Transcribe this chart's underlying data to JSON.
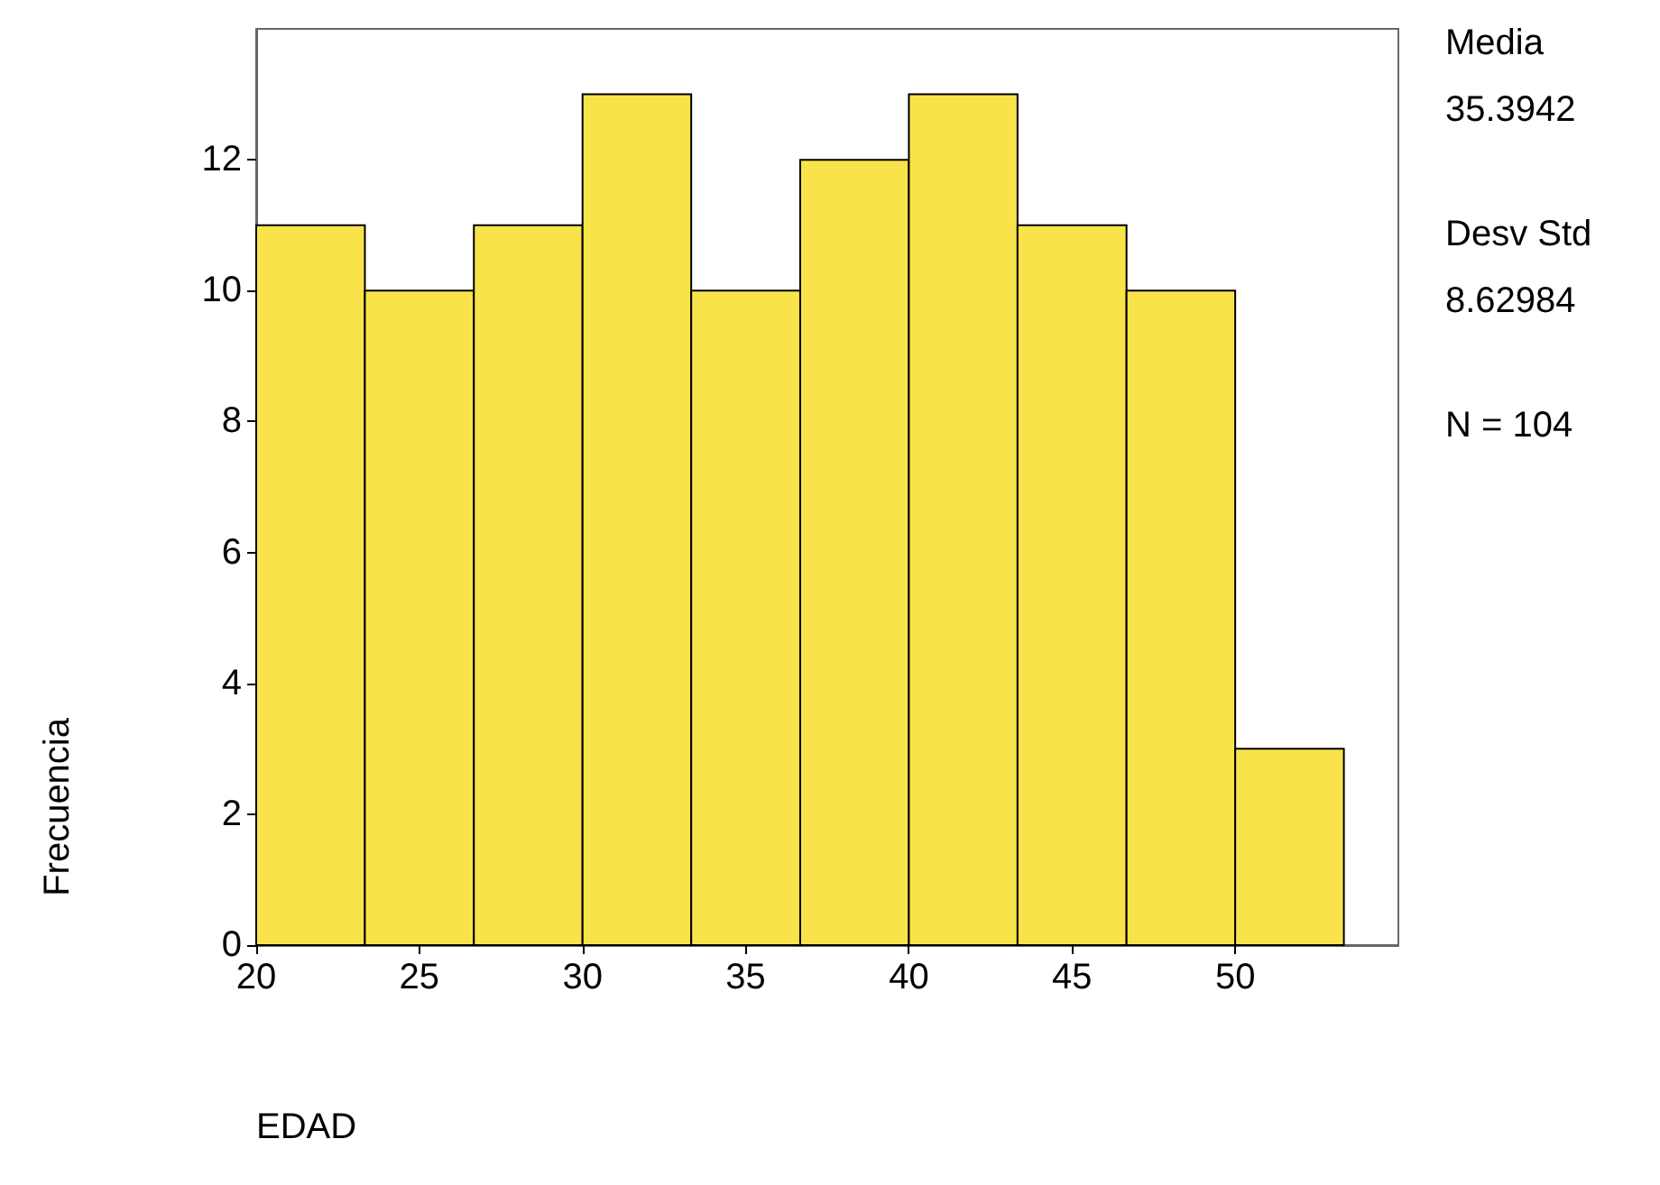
{
  "chart_data": {
    "type": "histogram",
    "xlabel": "EDAD",
    "ylabel": "Frecuencia",
    "bins": [
      20,
      23.33,
      26.67,
      30,
      33.33,
      36.67,
      40,
      43.33,
      46.67,
      50,
      53.33
    ],
    "values": [
      11,
      10,
      11,
      13,
      10,
      12,
      13,
      11,
      10,
      3
    ],
    "color": "#f9e34b",
    "xlim": [
      20,
      55
    ],
    "xticks": [
      20,
      25,
      30,
      35,
      40,
      45,
      50
    ],
    "ylim": [
      0,
      14
    ],
    "yticks": [
      0,
      2,
      4,
      6,
      8,
      10,
      12
    ],
    "grid": false,
    "annotations": [
      "Media",
      "35.3942",
      "Desv Std",
      "8.62984",
      "N = 104"
    ]
  }
}
